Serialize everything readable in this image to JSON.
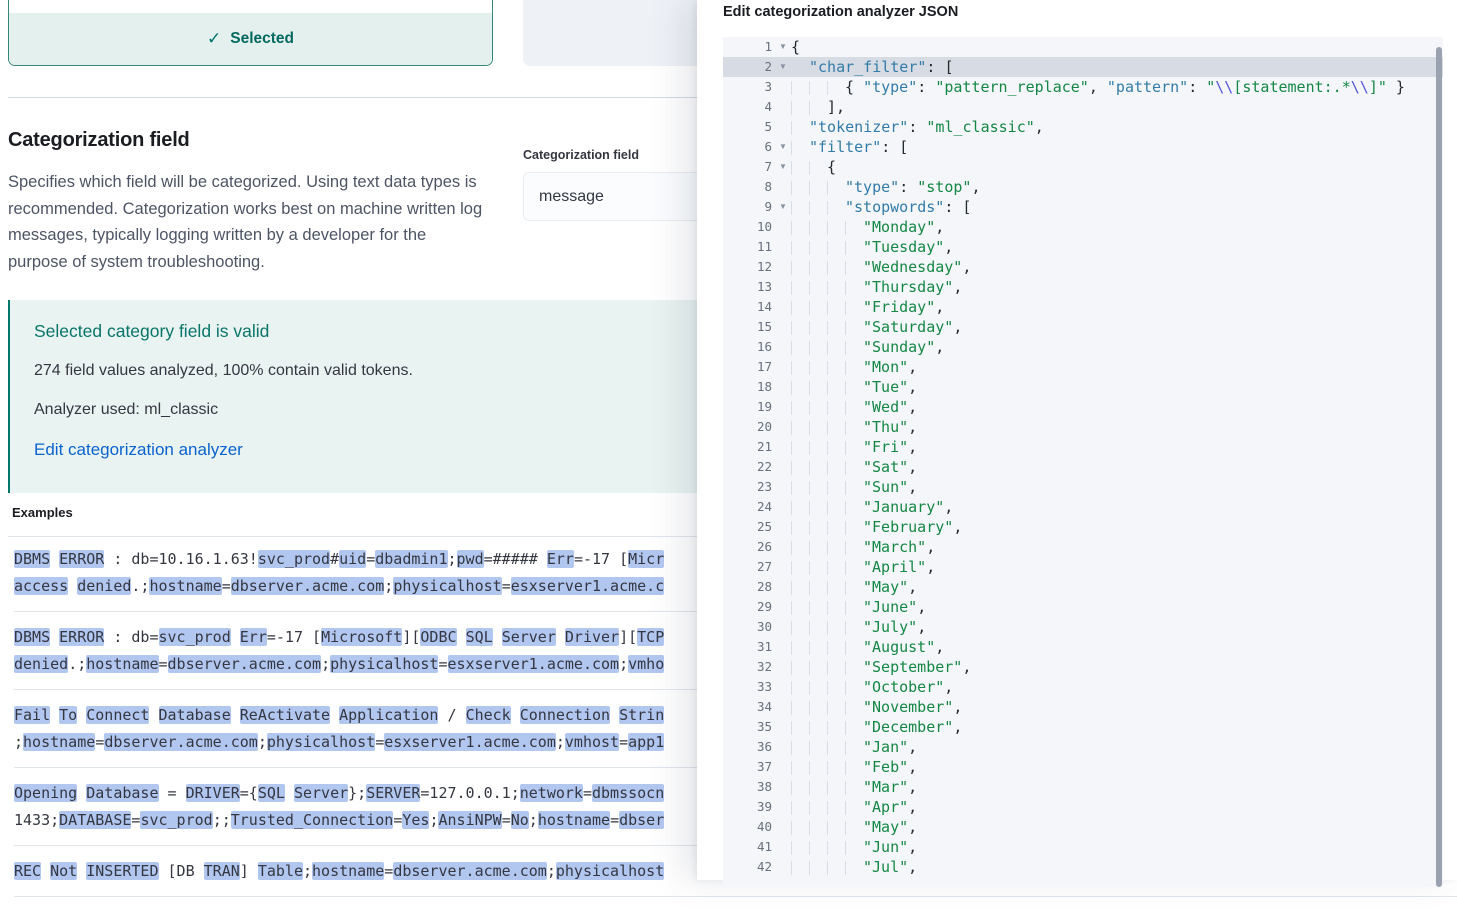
{
  "colors": {
    "accent_teal": "#00796b",
    "callout_bg": "#e9f3f1",
    "selected_footer_bg": "#e4f0ee",
    "link_blue": "#0b63ce",
    "token_highlight_bg": "#b2c7f0",
    "editor_bg": "#f4f6fa",
    "editor_active_line_bg": "#d7dbe4",
    "code_key": "#337ba8",
    "code_string": "#158744",
    "code_escape": "#5158d4",
    "code_punct": "#24292e"
  },
  "page": {
    "selected_card": {
      "label": "Selected",
      "check_icon": "check-icon"
    },
    "section": {
      "title": "Categorization field",
      "description": "Specifies which field will be categorized. Using text data types is recommended. Categorization works best on machine written log messages, typically logging written by a developer for the purpose of system troubleshooting.",
      "field_label": "Categorization field",
      "field_value": "message"
    },
    "callout": {
      "title": "Selected category field is valid",
      "line1": "274 field values analyzed, 100% contain valid tokens.",
      "line2": "Analyzer used: ml_classic",
      "link": "Edit categorization analyzer"
    },
    "examples": {
      "label": "Examples",
      "rows": [
        {
          "lines": [
            [
              [
                "h",
                "DBMS"
              ],
              [
                "n",
                " "
              ],
              [
                "h",
                "ERROR"
              ],
              [
                "n",
                " : db=10.16.1.63!"
              ],
              [
                "h",
                "svc_prod"
              ],
              [
                "n",
                "#"
              ],
              [
                "h",
                "uid"
              ],
              [
                "n",
                "="
              ],
              [
                "h",
                "dbadmin1"
              ],
              [
                "n",
                ";"
              ],
              [
                "h",
                "pwd"
              ],
              [
                "n",
                "=##### "
              ],
              [
                "h",
                "Err"
              ],
              [
                "n",
                "=-17 ["
              ],
              [
                "h",
                "Micr"
              ]
            ],
            [
              [
                "h",
                "access"
              ],
              [
                "n",
                " "
              ],
              [
                "h",
                "denied"
              ],
              [
                "n",
                ".;"
              ],
              [
                "h",
                "hostname"
              ],
              [
                "n",
                "="
              ],
              [
                "h",
                "dbserver.acme.com"
              ],
              [
                "n",
                ";"
              ],
              [
                "h",
                "physicalhost"
              ],
              [
                "n",
                "="
              ],
              [
                "h",
                "esxserver1.acme.c"
              ]
            ]
          ]
        },
        {
          "lines": [
            [
              [
                "h",
                "DBMS"
              ],
              [
                "n",
                " "
              ],
              [
                "h",
                "ERROR"
              ],
              [
                "n",
                " : db="
              ],
              [
                "h",
                "svc_prod"
              ],
              [
                "n",
                " "
              ],
              [
                "h",
                "Err"
              ],
              [
                "n",
                "=-17 ["
              ],
              [
                "h",
                "Microsoft"
              ],
              [
                "n",
                "]["
              ],
              [
                "h",
                "ODBC"
              ],
              [
                "n",
                " "
              ],
              [
                "h",
                "SQL"
              ],
              [
                "n",
                " "
              ],
              [
                "h",
                "Server"
              ],
              [
                "n",
                " "
              ],
              [
                "h",
                "Driver"
              ],
              [
                "n",
                "]["
              ],
              [
                "h",
                "TCP"
              ]
            ],
            [
              [
                "h",
                "denied"
              ],
              [
                "n",
                ".;"
              ],
              [
                "h",
                "hostname"
              ],
              [
                "n",
                "="
              ],
              [
                "h",
                "dbserver.acme.com"
              ],
              [
                "n",
                ";"
              ],
              [
                "h",
                "physicalhost"
              ],
              [
                "n",
                "="
              ],
              [
                "h",
                "esxserver1.acme.com"
              ],
              [
                "n",
                ";"
              ],
              [
                "h",
                "vmho"
              ]
            ]
          ]
        },
        {
          "lines": [
            [
              [
                "h",
                "Fail"
              ],
              [
                "n",
                " "
              ],
              [
                "h",
                "To"
              ],
              [
                "n",
                " "
              ],
              [
                "h",
                "Connect"
              ],
              [
                "n",
                " "
              ],
              [
                "h",
                "Database"
              ],
              [
                "n",
                " "
              ],
              [
                "h",
                "ReActivate"
              ],
              [
                "n",
                " "
              ],
              [
                "h",
                "Application"
              ],
              [
                "n",
                " / "
              ],
              [
                "h",
                "Check"
              ],
              [
                "n",
                " "
              ],
              [
                "h",
                "Connection"
              ],
              [
                "n",
                " "
              ],
              [
                "h",
                "Strin"
              ]
            ],
            [
              [
                "n",
                ";"
              ],
              [
                "h",
                "hostname"
              ],
              [
                "n",
                "="
              ],
              [
                "h",
                "dbserver.acme.com"
              ],
              [
                "n",
                ";"
              ],
              [
                "h",
                "physicalhost"
              ],
              [
                "n",
                "="
              ],
              [
                "h",
                "esxserver1.acme.com"
              ],
              [
                "n",
                ";"
              ],
              [
                "h",
                "vmhost"
              ],
              [
                "n",
                "="
              ],
              [
                "h",
                "app1"
              ]
            ]
          ]
        },
        {
          "lines": [
            [
              [
                "h",
                "Opening"
              ],
              [
                "n",
                " "
              ],
              [
                "h",
                "Database"
              ],
              [
                "n",
                " = "
              ],
              [
                "h",
                "DRIVER"
              ],
              [
                "n",
                "={"
              ],
              [
                "h",
                "SQL"
              ],
              [
                "n",
                " "
              ],
              [
                "h",
                "Server"
              ],
              [
                "n",
                "};"
              ],
              [
                "h",
                "SERVER"
              ],
              [
                "n",
                "=127.0.0.1;"
              ],
              [
                "h",
                "network"
              ],
              [
                "n",
                "="
              ],
              [
                "h",
                "dbmssocn"
              ]
            ],
            [
              [
                "n",
                "1433;"
              ],
              [
                "h",
                "DATABASE"
              ],
              [
                "n",
                "="
              ],
              [
                "h",
                "svc_prod"
              ],
              [
                "n",
                ";;"
              ],
              [
                "h",
                "Trusted_Connection"
              ],
              [
                "n",
                "="
              ],
              [
                "h",
                "Yes"
              ],
              [
                "n",
                ";"
              ],
              [
                "h",
                "AnsiNPW"
              ],
              [
                "n",
                "="
              ],
              [
                "h",
                "No"
              ],
              [
                "n",
                ";"
              ],
              [
                "h",
                "hostname"
              ],
              [
                "n",
                "="
              ],
              [
                "h",
                "dbser"
              ]
            ]
          ]
        },
        {
          "lines": [
            [
              [
                "h",
                "REC"
              ],
              [
                "n",
                " "
              ],
              [
                "h",
                "Not"
              ],
              [
                "n",
                " "
              ],
              [
                "h",
                "INSERTED"
              ],
              [
                "n",
                " [DB "
              ],
              [
                "h",
                "TRAN"
              ],
              [
                "n",
                "] "
              ],
              [
                "h",
                "Table"
              ],
              [
                "n",
                ";"
              ],
              [
                "h",
                "hostname"
              ],
              [
                "n",
                "="
              ],
              [
                "h",
                "dbserver.acme.com"
              ],
              [
                "n",
                ";"
              ],
              [
                "h",
                "physicalhost"
              ]
            ]
          ]
        }
      ]
    }
  },
  "flyout": {
    "title": "Edit categorization analyzer JSON",
    "editor": {
      "active_line": 2,
      "fold_icon": "fold-arrow-icon",
      "lines_head": [
        {
          "num": 1,
          "depth": 0,
          "fold": true,
          "tokens": [
            [
              "p",
              "{"
            ]
          ]
        },
        {
          "num": 2,
          "depth": 1,
          "fold": true,
          "tokens": [
            [
              "k",
              "\"char_filter\""
            ],
            [
              "p",
              ": ["
            ]
          ]
        },
        {
          "num": 3,
          "depth": 3,
          "fold": false,
          "tokens": [
            [
              "p",
              "{ "
            ],
            [
              "k",
              "\"type\""
            ],
            [
              "p",
              ": "
            ],
            [
              "s",
              "\"pattern_replace\""
            ],
            [
              "p",
              ", "
            ],
            [
              "k",
              "\"pattern\""
            ],
            [
              "p",
              ": "
            ],
            [
              "s",
              "\""
            ],
            [
              "e",
              "\\\\"
            ],
            [
              "s",
              "[statement:.*"
            ],
            [
              "e",
              "\\\\"
            ],
            [
              "s",
              "]\""
            ],
            [
              "p",
              " }"
            ]
          ]
        },
        {
          "num": 4,
          "depth": 2,
          "fold": false,
          "tokens": [
            [
              "p",
              "],"
            ]
          ]
        },
        {
          "num": 5,
          "depth": 1,
          "fold": false,
          "tokens": [
            [
              "k",
              "\"tokenizer\""
            ],
            [
              "p",
              ": "
            ],
            [
              "s",
              "\"ml_classic\""
            ],
            [
              "p",
              ","
            ]
          ]
        },
        {
          "num": 6,
          "depth": 1,
          "fold": true,
          "tokens": [
            [
              "k",
              "\"filter\""
            ],
            [
              "p",
              ": ["
            ]
          ]
        },
        {
          "num": 7,
          "depth": 2,
          "fold": true,
          "tokens": [
            [
              "p",
              "{"
            ]
          ]
        },
        {
          "num": 8,
          "depth": 3,
          "fold": false,
          "tokens": [
            [
              "k",
              "\"type\""
            ],
            [
              "p",
              ": "
            ],
            [
              "s",
              "\"stop\""
            ],
            [
              "p",
              ","
            ]
          ]
        },
        {
          "num": 9,
          "depth": 3,
          "fold": true,
          "tokens": [
            [
              "k",
              "\"stopwords\""
            ],
            [
              "p",
              ": ["
            ]
          ]
        }
      ],
      "stopwords_start_line": 10,
      "stopwords_depth": 4,
      "stopwords": [
        "Monday",
        "Tuesday",
        "Wednesday",
        "Thursday",
        "Friday",
        "Saturday",
        "Sunday",
        "Mon",
        "Tue",
        "Wed",
        "Thu",
        "Fri",
        "Sat",
        "Sun",
        "January",
        "February",
        "March",
        "April",
        "May",
        "June",
        "July",
        "August",
        "September",
        "October",
        "November",
        "December",
        "Jan",
        "Feb",
        "Mar",
        "Apr",
        "May",
        "Jun",
        "Jul"
      ]
    }
  }
}
